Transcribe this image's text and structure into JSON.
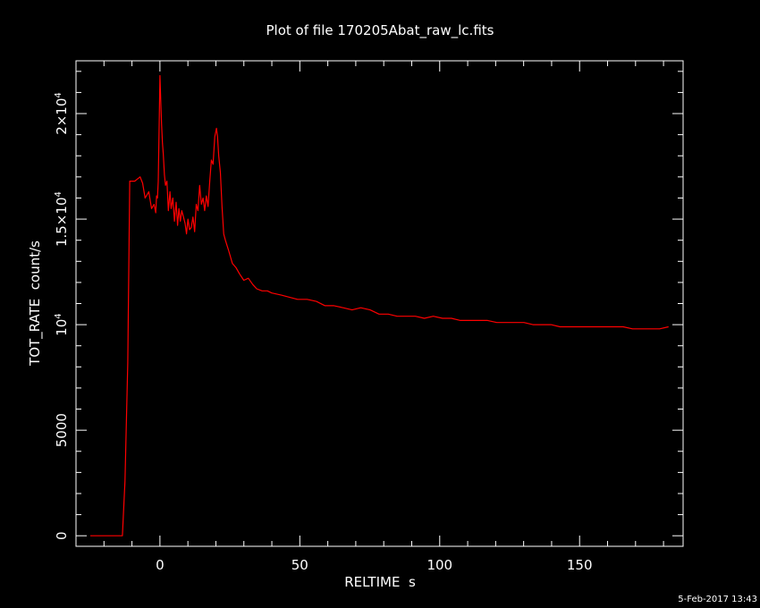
{
  "chart_data": {
    "type": "line",
    "title": "Plot of file 170205Abat_raw_lc.fits",
    "xlabel": "RELTIME  s",
    "ylabel": "TOT_RATE  count/s",
    "timestamp": "5-Feb-2017 13:43",
    "xlim": [
      -30,
      187
    ],
    "ylim": [
      -500,
      22500
    ],
    "x_ticks": [
      {
        "value": 0,
        "label": "0"
      },
      {
        "value": 50,
        "label": "50"
      },
      {
        "value": 100,
        "label": "100"
      },
      {
        "value": 150,
        "label": "150"
      }
    ],
    "y_ticks": [
      {
        "value": 0,
        "mantissa": "0",
        "exp": ""
      },
      {
        "value": 5000,
        "mantissa": "5000",
        "exp": ""
      },
      {
        "value": 10000,
        "mantissa": "10",
        "exp": "4"
      },
      {
        "value": 15000,
        "mantissa": "1.5×10",
        "exp": "4"
      },
      {
        "value": 20000,
        "mantissa": "2×10",
        "exp": "4"
      }
    ],
    "grid": false,
    "series": [
      {
        "color": "#ff0000",
        "x": [
          -24.9,
          -13.4,
          -12.5,
          -11.5,
          -10.8,
          -10.2,
          -9.6,
          -9.0,
          -7.1,
          -6.2,
          -5.3,
          -4.0,
          -3.0,
          -2.1,
          -1.5,
          -1.2,
          -0.9,
          -0.6,
          0.0,
          0.3,
          0.6,
          0.9,
          1.2,
          1.6,
          2.0,
          2.5,
          3.0,
          3.6,
          4.0,
          4.6,
          5.2,
          5.8,
          6.3,
          6.8,
          7.3,
          7.8,
          8.4,
          9.0,
          9.5,
          10.0,
          10.6,
          11.2,
          11.8,
          12.4,
          13.0,
          13.6,
          14.2,
          14.8,
          15.4,
          16.0,
          16.6,
          17.2,
          17.8,
          18.4,
          19.0,
          19.6,
          20.2,
          20.6,
          21.0,
          21.6,
          22.2,
          22.8,
          23.4,
          24.6,
          25.9,
          27.2,
          28.5,
          30.0,
          31.6,
          33.2,
          34.6,
          36.5,
          38.4,
          40.0,
          43.4,
          46.3,
          49.2,
          52.6,
          55.9,
          59.0,
          62.2,
          65.5,
          68.7,
          71.8,
          75.1,
          78.3,
          81.6,
          84.8,
          88.0,
          91.3,
          94.5,
          97.7,
          101.0,
          104.2,
          107.4,
          110.7,
          113.9,
          117.1,
          120.4,
          123.6,
          126.8,
          130.1,
          133.3,
          136.6,
          139.8,
          143.0,
          146.3,
          149.5,
          152.7,
          155.9,
          159.2,
          162.4,
          165.6,
          168.9,
          172.1,
          175.3,
          178.6,
          181.8
        ],
        "y": [
          0,
          0,
          2600,
          8200,
          16800,
          16800,
          16800,
          16800,
          17000,
          16700,
          16000,
          16300,
          15500,
          15700,
          15300,
          16100,
          16000,
          16800,
          21800,
          20600,
          19500,
          18600,
          18100,
          17100,
          16600,
          16800,
          15400,
          16300,
          15500,
          16000,
          14900,
          15800,
          14700,
          15500,
          14900,
          15400,
          15100,
          14800,
          14300,
          15000,
          14500,
          14600,
          15100,
          14400,
          15700,
          15400,
          16600,
          15700,
          16000,
          15400,
          16100,
          15600,
          16800,
          17800,
          17600,
          18900,
          19300,
          18900,
          18000,
          17200,
          15600,
          14300,
          14000,
          13500,
          12900,
          12700,
          12400,
          12100,
          12200,
          11900,
          11700,
          11600,
          11600,
          11500,
          11400,
          11300,
          11200,
          11200,
          11100,
          10900,
          10900,
          10800,
          10700,
          10800,
          10700,
          10500,
          10500,
          10400,
          10400,
          10400,
          10300,
          10400,
          10300,
          10300,
          10200,
          10200,
          10200,
          10200,
          10100,
          10100,
          10100,
          10100,
          10000,
          10000,
          10000,
          9900,
          9900,
          9900,
          9900,
          9900,
          9900,
          9900,
          9900,
          9800,
          9800,
          9800,
          9800,
          9900
        ]
      }
    ]
  }
}
